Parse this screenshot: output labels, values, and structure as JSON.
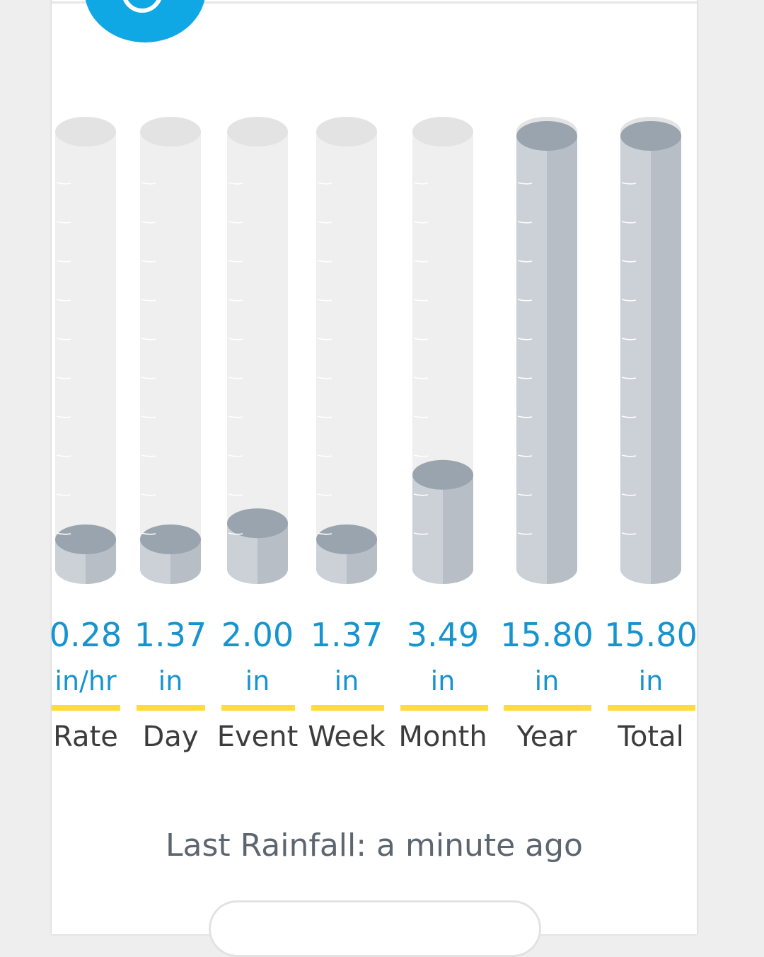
{
  "last_rainfall": "Last Rainfall: a minute ago",
  "colors": {
    "accent_blue": "#1694cf",
    "badge_blue": "#0fa8e4",
    "yellow_bar": "#ffdc3c",
    "tube_empty": "#efefef",
    "tube_top_empty": "#e3e3e3",
    "liquid_left": "#cbd1d7",
    "liquid_right": "#b7bec6",
    "liquid_top": "#9aa4ae"
  },
  "icons": {
    "badge": "weather-station-icon"
  },
  "metrics": [
    {
      "label": "Rate",
      "value": "0.28",
      "unit": "in/hr",
      "fill": 0.0
    },
    {
      "label": "Day",
      "value": "1.37",
      "unit": "in",
      "fill": 0.0
    },
    {
      "label": "Event",
      "value": "2.00",
      "unit": "in",
      "fill": 0.04
    },
    {
      "label": "Week",
      "value": "1.37",
      "unit": "in",
      "fill": 0.0
    },
    {
      "label": "Month",
      "value": "3.49",
      "unit": "in",
      "fill": 0.16
    },
    {
      "label": "Year",
      "value": "15.80",
      "unit": "in",
      "fill": 1.0
    },
    {
      "label": "Total",
      "value": "15.80",
      "unit": "in",
      "fill": 1.0
    }
  ]
}
